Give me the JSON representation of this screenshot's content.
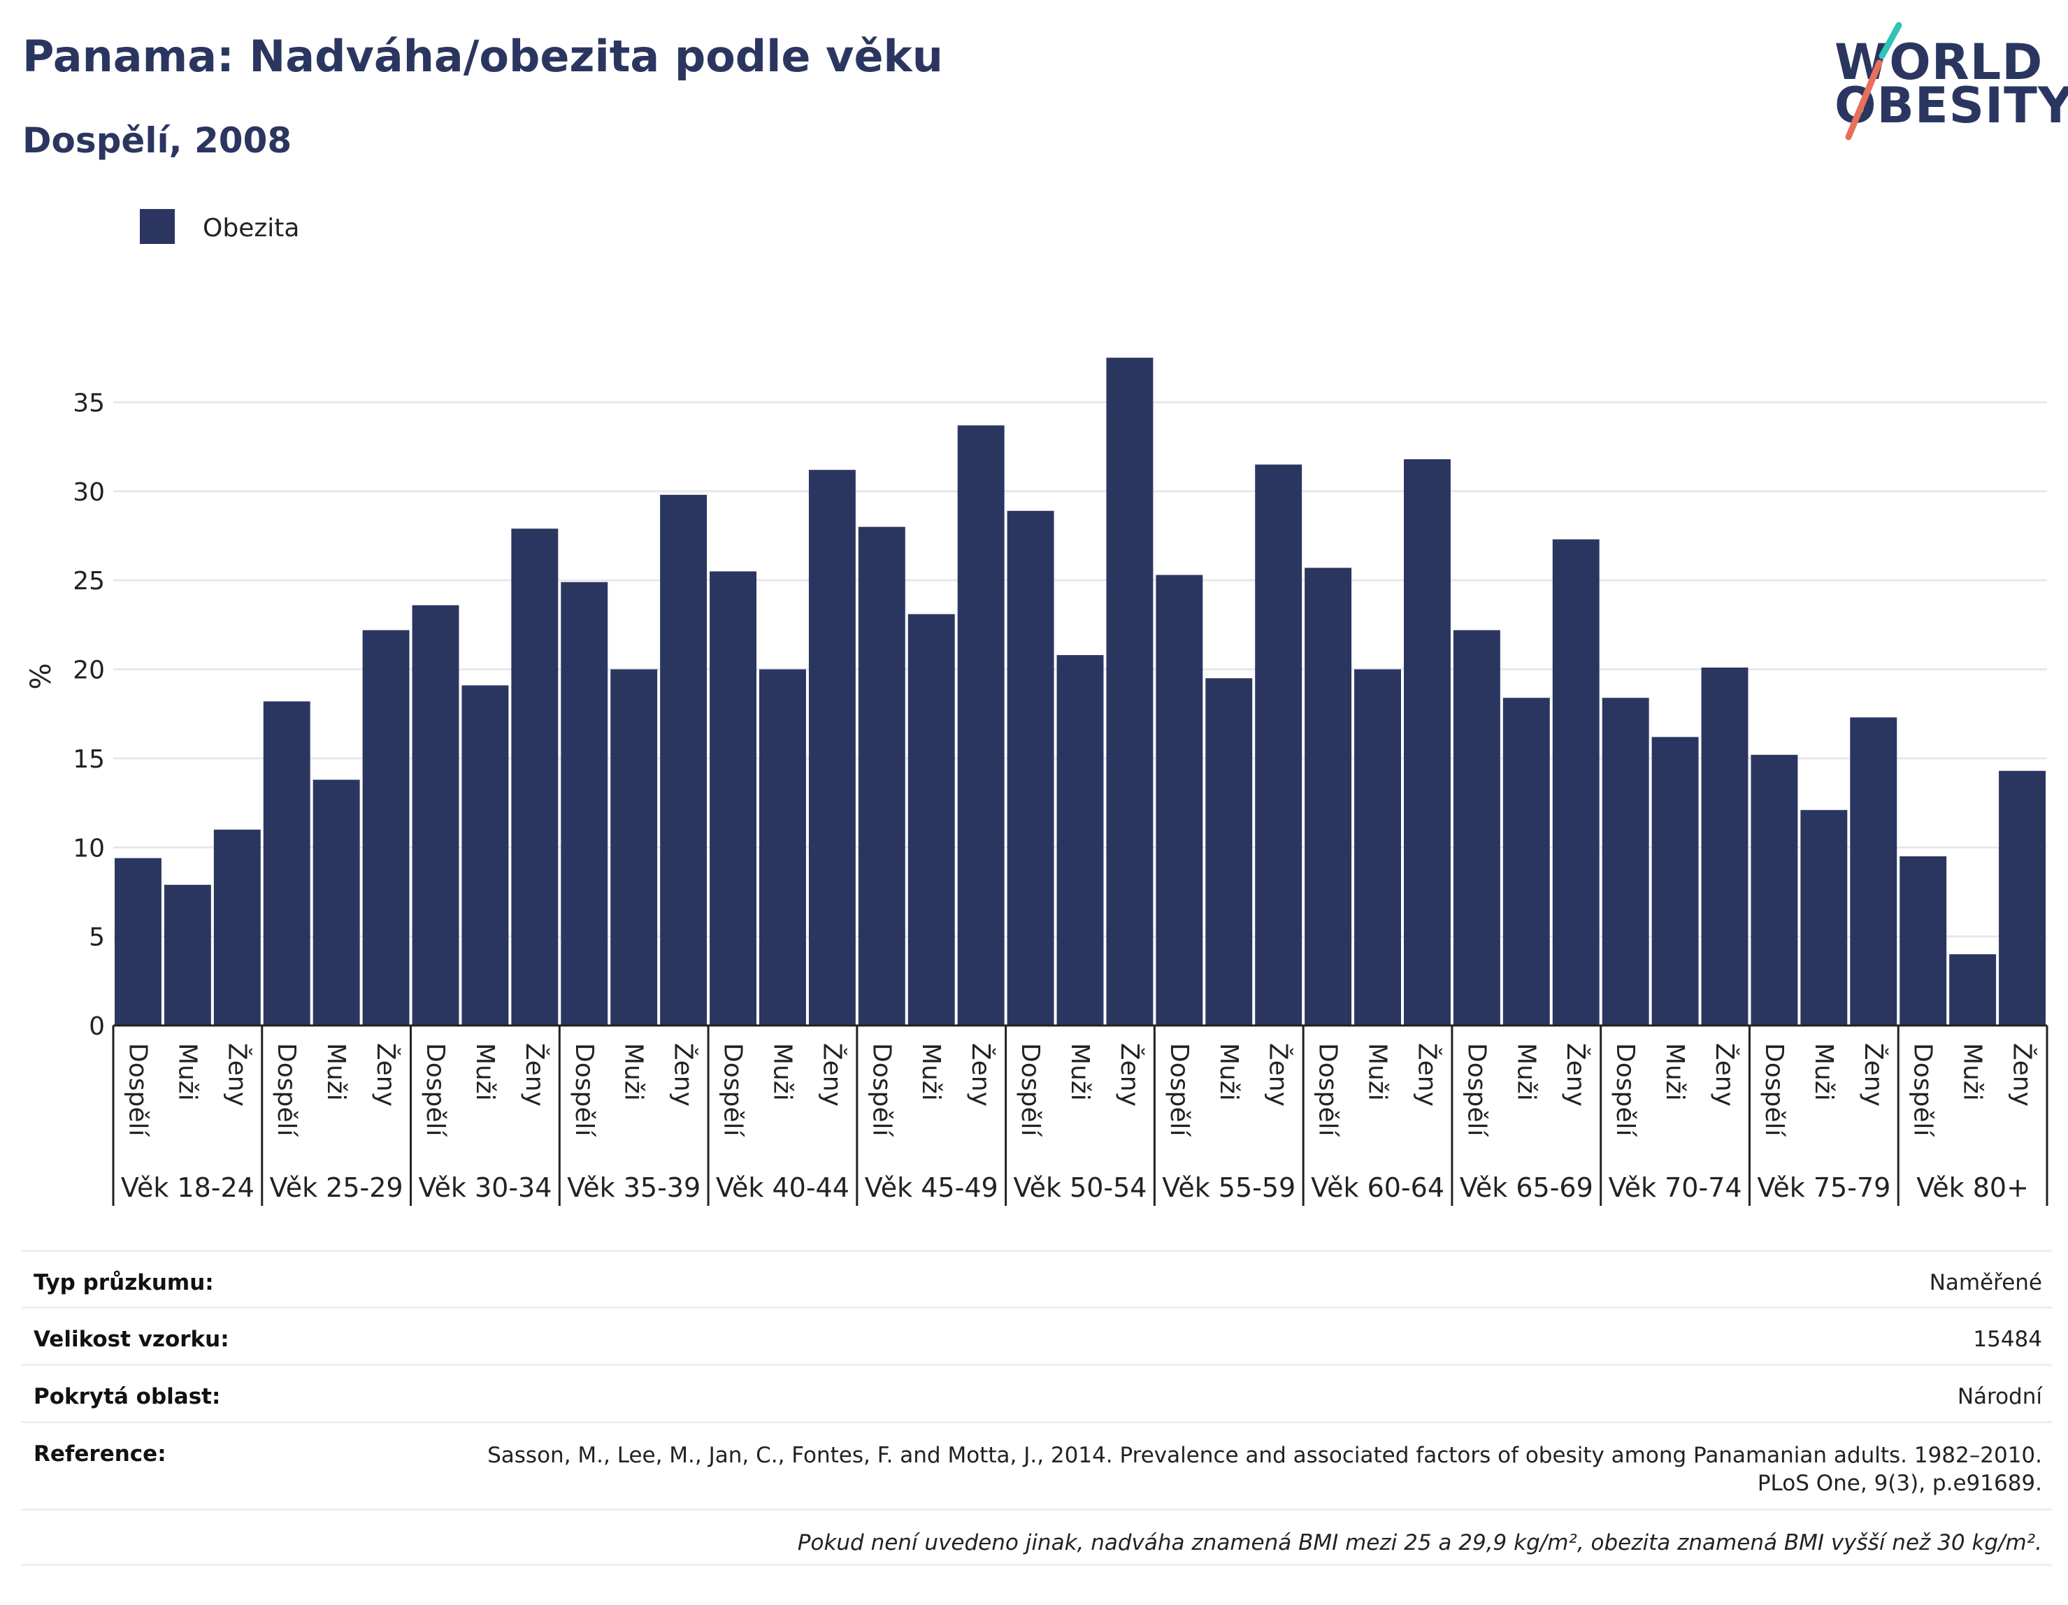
{
  "header": {
    "title": "Panama: Nadváha/obezita podle věku",
    "subtitle": "Dospělí, 2008"
  },
  "logo": {
    "line1": "WORLD",
    "line2": "OBESITY",
    "colors": {
      "text": "#2b3660",
      "slash_top": "#2ec4b6",
      "slash_bottom": "#e8705a"
    }
  },
  "legend": {
    "items": [
      {
        "label": "Obezita",
        "color": "#2b3660"
      }
    ]
  },
  "chart_data": {
    "type": "bar",
    "ylabel": "%",
    "ylim": [
      0,
      40
    ],
    "yticks": [
      0,
      5,
      10,
      15,
      20,
      25,
      30,
      35
    ],
    "grid": true,
    "legend_position": "top-left",
    "bar_color": "#2b3660",
    "groups": [
      "Věk 18-24",
      "Věk 25-29",
      "Věk 30-34",
      "Věk 35-39",
      "Věk 40-44",
      "Věk 45-49",
      "Věk 50-54",
      "Věk 55-59",
      "Věk 60-64",
      "Věk 65-69",
      "Věk 70-74",
      "Věk 75-79",
      "Věk 80+"
    ],
    "subcategories": [
      "Dospělí",
      "Muži",
      "Ženy"
    ],
    "series": [
      {
        "name": "Obezita",
        "values": [
          9.4,
          7.9,
          11.0,
          18.2,
          13.8,
          22.2,
          23.6,
          19.1,
          27.9,
          24.9,
          20.0,
          29.8,
          25.5,
          20.0,
          31.2,
          28.0,
          23.1,
          33.7,
          28.9,
          20.8,
          37.5,
          25.3,
          19.5,
          31.5,
          25.7,
          20.0,
          31.8,
          22.2,
          18.4,
          27.3,
          18.4,
          16.2,
          20.1,
          15.2,
          12.1,
          17.3,
          9.5,
          4.0,
          14.3
        ]
      }
    ]
  },
  "info": {
    "rows": [
      {
        "label": "Typ průzkumu:",
        "value": "Naměřené"
      },
      {
        "label": "Velikost vzorku:",
        "value": "15484"
      },
      {
        "label": "Pokrytá oblast:",
        "value": "Národní"
      },
      {
        "label": "Reference:",
        "value": "Sasson, M., Lee, M., Jan, C., Fontes, F. and Motta, J., 2014. Prevalence and associated factors of obesity among Panamanian adults. 1982–2010. PLoS One, 9(3), p.e91689."
      }
    ],
    "note": "Pokud není uvedeno jinak, nadváha znamená BMI mezi 25 a 29,9 kg/m², obezita znamená BMI vyšší než 30 kg/m²."
  }
}
